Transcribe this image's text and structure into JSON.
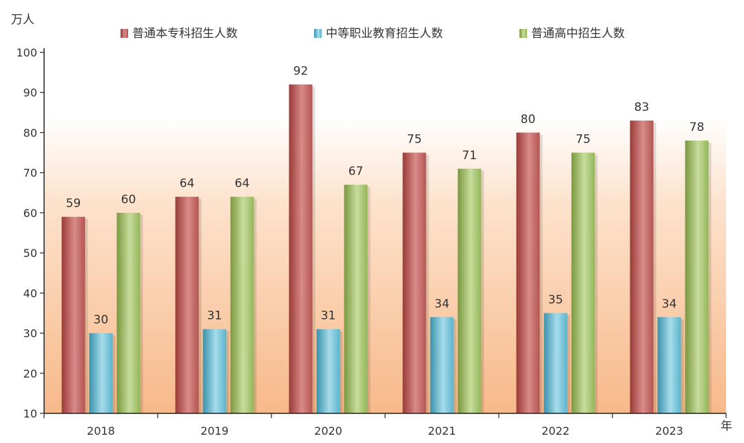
{
  "chart_data": {
    "type": "bar",
    "title": "",
    "xlabel": "年",
    "ylabel": "万人",
    "ylim": [
      10,
      100
    ],
    "yticks": [
      10,
      20,
      30,
      40,
      50,
      60,
      70,
      80,
      90,
      100
    ],
    "categories": [
      "2018",
      "2019",
      "2020",
      "2021",
      "2022",
      "2023"
    ],
    "series": [
      {
        "name": "普通本专科招生人数",
        "color": "#c0504d",
        "values": [
          59,
          64,
          92,
          75,
          80,
          83
        ]
      },
      {
        "name": "中等职业教育招生人数",
        "color": "#4bacc6",
        "values": [
          30,
          31,
          31,
          34,
          35,
          34
        ]
      },
      {
        "name": "普通高中招生人数",
        "color": "#9bbb59",
        "values": [
          60,
          64,
          67,
          71,
          75,
          78
        ]
      }
    ],
    "legend_position": "top",
    "grid": false,
    "background": "gradient-orange"
  }
}
